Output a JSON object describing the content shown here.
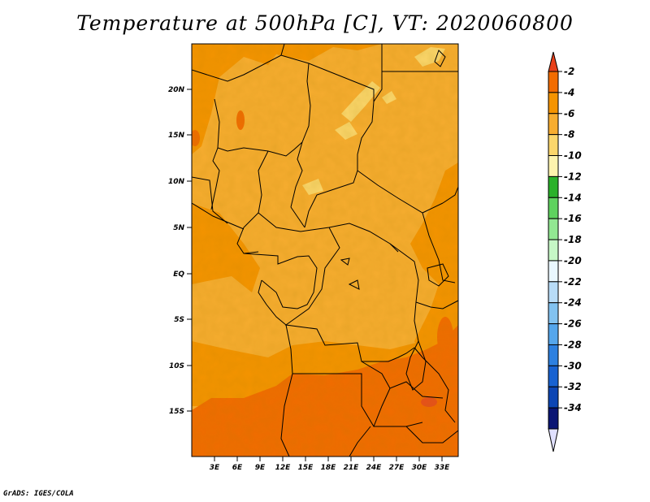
{
  "title": "Temperature at 500hPa [C], VT: 2020060800",
  "credit": "GrADS: IGES/COLA",
  "map": {
    "y_ticks": [
      "20N",
      "15N",
      "10N",
      "5N",
      "EQ",
      "5S",
      "10S",
      "15S"
    ],
    "x_ticks": [
      "3E",
      "6E",
      "9E",
      "12E",
      "15E",
      "18E",
      "21E",
      "24E",
      "27E",
      "30E",
      "33E"
    ]
  },
  "colorbar": {
    "labels": [
      "-2",
      "-4",
      "-6",
      "-8",
      "-10",
      "-12",
      "-14",
      "-16",
      "-18",
      "-20",
      "-22",
      "-24",
      "-26",
      "-28",
      "-30",
      "-32",
      "-34"
    ],
    "top_arrow_color": "#e8401a",
    "bottom_arrow_color": "#e0e0ff",
    "colors": [
      "#f26c00",
      "#f59400",
      "#f7ad30",
      "#fbd66b",
      "#fdf3ae",
      "#2ab12a",
      "#5fd25f",
      "#92e792",
      "#c6f7c6",
      "#eaf8ff",
      "#b8dcf7",
      "#82c2f0",
      "#55a6ec",
      "#2d80e0",
      "#1862d1",
      "#0d46b4",
      "#0a1574"
    ]
  },
  "chart_data": {
    "type": "heatmap",
    "title": "Temperature at 500hPa [C], VT: 2020060800",
    "variable": "Temperature at 500hPa",
    "units": "C",
    "valid_time": "2020060800",
    "x_ticks": [
      "3E",
      "6E",
      "9E",
      "12E",
      "15E",
      "18E",
      "21E",
      "24E",
      "27E",
      "30E",
      "33E"
    ],
    "y_ticks": [
      "20N",
      "15N",
      "10N",
      "5N",
      "EQ",
      "5S",
      "10S",
      "15S"
    ],
    "colorbar_levels": [
      -2,
      -4,
      -6,
      -8,
      -10,
      -12,
      -14,
      -16,
      -18,
      -20,
      -22,
      -24,
      -26,
      -28,
      -30,
      -32,
      -34
    ],
    "regions": [
      {
        "area": "southern band (~10S-20S)",
        "range": "-2 to -4"
      },
      {
        "area": "western coast and Gulf of Guinea",
        "range": "-4 to -6"
      },
      {
        "area": "Congo basin and central Africa",
        "range": "-6 to -8"
      },
      {
        "area": "Sudan / Chad interior streaks",
        "range": "-8 to -10"
      }
    ]
  }
}
